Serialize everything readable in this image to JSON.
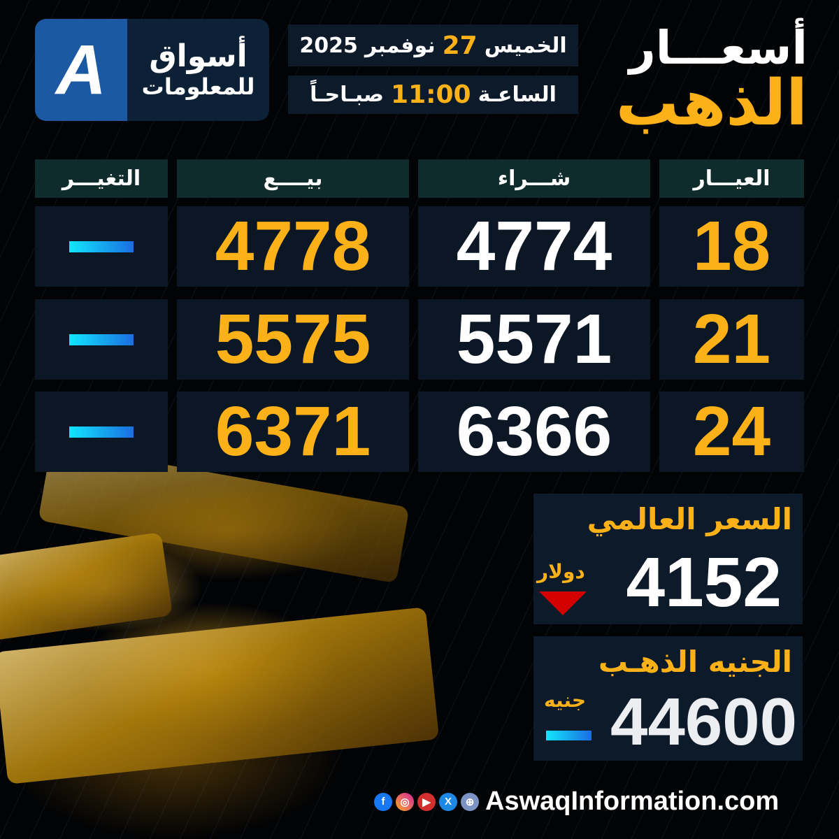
{
  "logo": {
    "mark": "A",
    "name_line1": "أسواق",
    "name_line2": "للمعلومات"
  },
  "title": {
    "line1": "أسعـــار",
    "line2": "الذهب"
  },
  "date": {
    "day": "الخميس",
    "day_num": "27",
    "month": "نوفمبر",
    "year": "2025"
  },
  "time": {
    "label": "الساعـة",
    "value": "11:00",
    "period": "صبـاحـاً"
  },
  "table": {
    "headers": {
      "karat": "العيـــار",
      "buy": "شـــراء",
      "sell": "بيــــع",
      "change": "التغيـــر"
    },
    "rows": [
      {
        "karat": "18",
        "buy": "4774",
        "sell": "4778",
        "change": "unchanged"
      },
      {
        "karat": "21",
        "buy": "5571",
        "sell": "5575",
        "change": "unchanged"
      },
      {
        "karat": "24",
        "buy": "6366",
        "sell": "6371",
        "change": "unchanged"
      }
    ]
  },
  "global_price": {
    "label": "السعر العالمي",
    "value": "4152",
    "unit": "دولار",
    "trend": "down"
  },
  "gold_pound": {
    "label": "الجنيه الذهـب",
    "value": "44600",
    "unit": "جنيه",
    "trend": "unchanged"
  },
  "footer": {
    "website": "AswaqInformation.com",
    "social_icons": [
      "facebook-icon",
      "instagram-icon",
      "youtube-icon",
      "x-icon",
      "globe-icon"
    ]
  },
  "colors": {
    "gold": "#fbb117",
    "down": "#d30000",
    "unchanged": "#12e6ff"
  }
}
